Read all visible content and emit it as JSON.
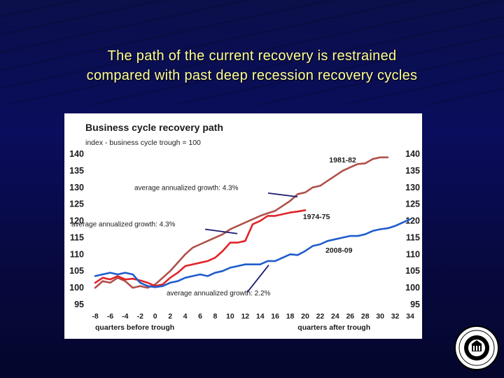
{
  "slide": {
    "title_line1": "The path of the current recovery is restrained",
    "title_line2": "compared with past deep recession recovery cycles"
  },
  "colors": {
    "background": "#0a0d5c",
    "title": "#ffff99",
    "series_1981": "#b0504a",
    "series_1974": "#e0252a",
    "series_2008": "#1f5ccc",
    "annotation_line": "#1a1a6e"
  },
  "chart_data": {
    "type": "line",
    "title": "Business cycle recovery path",
    "subtitle": "index - business cycle trough = 100",
    "ylim": [
      95,
      140
    ],
    "yticks": [
      95,
      100,
      105,
      110,
      115,
      120,
      125,
      130,
      135,
      140
    ],
    "xticks": [
      -8,
      -6,
      -4,
      -2,
      0,
      2,
      4,
      6,
      8,
      10,
      12,
      14,
      16,
      18,
      20,
      22,
      24,
      26,
      28,
      30,
      32,
      34
    ],
    "xlabel_left": "quarters before trough",
    "xlabel_right": "quarters after trough",
    "grid": false,
    "series": [
      {
        "name": "1981-82",
        "x": [
          -8,
          -7,
          -6,
          -5,
          -4,
          -3,
          -2,
          -1,
          0,
          1,
          2,
          3,
          4,
          5,
          6,
          7,
          8,
          9,
          10,
          11,
          12,
          13,
          14,
          15,
          16,
          17,
          18,
          19,
          20,
          21,
          22,
          23,
          24,
          25,
          26,
          27,
          28,
          29,
          30,
          31
        ],
        "values": [
          100,
          102,
          101.5,
          103,
          102,
          100,
          100.5,
          100,
          101,
          103,
          105,
          107.5,
          110,
          112,
          113,
          114,
          115,
          116,
          117.5,
          118.5,
          119.5,
          120.5,
          121.5,
          122.3,
          123,
          124.5,
          126,
          128,
          128.5,
          130,
          130.5,
          132,
          133.5,
          135,
          136,
          137,
          137.2,
          138.5,
          139,
          139
        ]
      },
      {
        "name": "1974-75",
        "x": [
          -8,
          -7,
          -6,
          -5,
          -4,
          -3,
          -2,
          -1,
          0,
          1,
          2,
          3,
          4,
          5,
          6,
          7,
          8,
          9,
          10,
          11,
          12,
          13,
          14,
          15,
          16,
          17,
          18,
          19,
          20
        ],
        "values": [
          101.5,
          103,
          102.5,
          103.5,
          102.5,
          102.7,
          102.2,
          101.5,
          100.5,
          101,
          103,
          104.5,
          106.5,
          107,
          107.5,
          108,
          109,
          111,
          113.5,
          113.5,
          114,
          119,
          120,
          121.5,
          121.5,
          122,
          122.5,
          122.8,
          123.2
        ]
      },
      {
        "name": "2008-09",
        "x": [
          -8,
          -7,
          -6,
          -5,
          -4,
          -3,
          -2,
          -1,
          0,
          1,
          2,
          3,
          4,
          5,
          6,
          7,
          8,
          9,
          10,
          11,
          12,
          13,
          14,
          15,
          16,
          17,
          18,
          19,
          20,
          21,
          22,
          23,
          24,
          25,
          26,
          27,
          28,
          29,
          30,
          31,
          32,
          33,
          34
        ],
        "values": [
          103.5,
          104,
          104.5,
          104,
          104.5,
          104,
          101.5,
          100.5,
          100.2,
          100.5,
          101.5,
          102,
          103,
          103.5,
          104,
          103.5,
          104.5,
          105,
          106,
          106.5,
          107,
          107,
          107,
          108,
          108,
          109,
          110,
          109.8,
          111,
          112.5,
          113,
          114,
          114.5,
          115,
          115.5,
          115.5,
          116,
          117,
          117.5,
          117.8,
          118.5,
          119.5,
          120.5
        ]
      }
    ],
    "series_labels": [
      "1981-82",
      "1974-75",
      "2008-09"
    ],
    "annotations": [
      "average annualized growth: 4.3%",
      "average annualized growth: 4.3%",
      "average annualized growth: 2.2%"
    ]
  }
}
